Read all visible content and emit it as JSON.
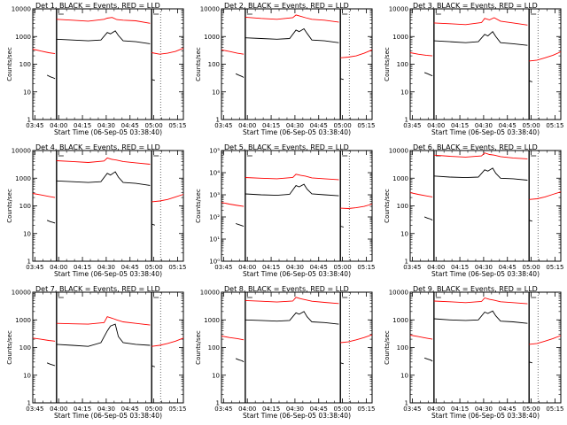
{
  "chart_data": [
    {
      "type": "line",
      "title": "Det 1, BLACK = Events, RED = LLD",
      "ylabel": "Counts/sec",
      "xlabel": "Start Time (06-Sep-05 03:38:40)",
      "xticks": [
        "03:45",
        "04:00",
        "04:15",
        "04:30",
        "04:45",
        "05:00",
        "05:15"
      ],
      "x_range_min": [
        5,
        100
      ],
      "yscale": "log",
      "ylim": [
        1,
        10000
      ],
      "ytick_labels": [
        "1",
        "10",
        "100",
        "1000",
        "10000"
      ],
      "gap_min": [
        20,
        80
      ],
      "series": [
        {
          "color": "#ff0000",
          "x": [
            5,
            10,
            15,
            19,
            20,
            30,
            40,
            50,
            52,
            55,
            58,
            62,
            70,
            79,
            80,
            85,
            90,
            95,
            100
          ],
          "y": [
            350,
            300,
            260,
            240,
            4200,
            3900,
            3600,
            4200,
            4600,
            4900,
            4100,
            3900,
            3700,
            3000,
            260,
            230,
            250,
            290,
            380
          ]
        },
        {
          "color": "#000000",
          "x": [
            14,
            16,
            18,
            19,
            20,
            30,
            40,
            48,
            52,
            54,
            57,
            59,
            62,
            70,
            79,
            80,
            82
          ],
          "y": [
            40,
            35,
            32,
            30,
            800,
            750,
            700,
            750,
            1400,
            1250,
            1600,
            1100,
            700,
            650,
            550,
            28,
            26
          ]
        }
      ]
    },
    {
      "type": "line",
      "title": "Det 2, BLACK = Events, RED = LLD",
      "ylabel": "Counts/sec",
      "xlabel": "Start Time (06-Sep-05 03:38:40)",
      "xticks": [
        "03:45",
        "04:00",
        "04:15",
        "04:30",
        "04:45",
        "05:00",
        "05:15"
      ],
      "x_range_min": [
        5,
        100
      ],
      "yscale": "log",
      "ylim": [
        1,
        10000
      ],
      "ytick_labels": [
        "1",
        "10",
        "100",
        "1000",
        "10000"
      ],
      "gap_min": [
        20,
        80
      ],
      "series": [
        {
          "color": "#ff0000",
          "x": [
            5,
            10,
            15,
            19,
            20,
            30,
            40,
            50,
            52,
            55,
            58,
            62,
            70,
            79,
            80,
            85,
            90,
            95,
            100
          ],
          "y": [
            330,
            290,
            250,
            230,
            5000,
            4500,
            4200,
            4800,
            6000,
            5400,
            4800,
            4200,
            3900,
            3300,
            170,
            180,
            200,
            250,
            330
          ]
        },
        {
          "color": "#000000",
          "x": [
            14,
            16,
            18,
            19,
            20,
            30,
            40,
            48,
            52,
            54,
            57,
            59,
            62,
            70,
            79,
            80,
            82
          ],
          "y": [
            45,
            40,
            36,
            33,
            900,
            850,
            800,
            850,
            1700,
            1500,
            1900,
            1300,
            750,
            700,
            600,
            30,
            28
          ]
        }
      ]
    },
    {
      "type": "line",
      "title": "Det 3, BLACK = Events, RED = LLD",
      "ylabel": "Counts/sec",
      "xlabel": "Start Time (06-Sep-05 03:38:40)",
      "xticks": [
        "03:45",
        "04:00",
        "04:15",
        "04:30",
        "04:45",
        "05:00",
        "05:15"
      ],
      "x_range_min": [
        5,
        100
      ],
      "yscale": "log",
      "ylim": [
        1,
        10000
      ],
      "ytick_labels": [
        "1",
        "10",
        "100",
        "1000",
        "10000"
      ],
      "gap_min": [
        20,
        80
      ],
      "series": [
        {
          "color": "#ff0000",
          "x": [
            5,
            10,
            15,
            19,
            20,
            30,
            40,
            50,
            52,
            55,
            58,
            62,
            70,
            79,
            80,
            85,
            90,
            95,
            100
          ],
          "y": [
            260,
            230,
            210,
            200,
            3100,
            2900,
            2700,
            3200,
            4500,
            4000,
            4800,
            3600,
            3100,
            2600,
            130,
            140,
            170,
            210,
            280
          ]
        },
        {
          "color": "#000000",
          "x": [
            14,
            16,
            18,
            19,
            20,
            30,
            40,
            48,
            52,
            54,
            57,
            59,
            62,
            70,
            79,
            80,
            82
          ],
          "y": [
            50,
            45,
            40,
            38,
            700,
            650,
            600,
            650,
            1200,
            1050,
            1500,
            1000,
            600,
            550,
            480,
            25,
            23
          ]
        }
      ]
    },
    {
      "type": "line",
      "title": "Det 4, BLACK = Events, RED = LLD",
      "ylabel": "Counts/sec",
      "xlabel": "Start Time (06-Sep-05 03:38:40)",
      "xticks": [
        "03:45",
        "04:00",
        "04:15",
        "04:30",
        "04:45",
        "05:00",
        "05:15"
      ],
      "x_range_min": [
        5,
        100
      ],
      "yscale": "log",
      "ylim": [
        1,
        10000
      ],
      "ytick_labels": [
        "1",
        "10",
        "100",
        "1000",
        "10000"
      ],
      "gap_min": [
        20,
        80
      ],
      "series": [
        {
          "color": "#ff0000",
          "x": [
            5,
            10,
            15,
            19,
            20,
            30,
            40,
            50,
            52,
            55,
            58,
            62,
            70,
            79,
            80,
            85,
            90,
            95,
            100
          ],
          "y": [
            280,
            250,
            220,
            200,
            4300,
            4000,
            3700,
            4200,
            5400,
            4800,
            4500,
            4000,
            3600,
            3200,
            140,
            150,
            170,
            210,
            260
          ]
        },
        {
          "color": "#000000",
          "x": [
            14,
            16,
            18,
            19,
            20,
            30,
            40,
            48,
            52,
            54,
            57,
            59,
            62,
            70,
            79,
            80,
            82
          ],
          "y": [
            30,
            27,
            25,
            24,
            800,
            750,
            700,
            750,
            1500,
            1300,
            1700,
            1100,
            700,
            650,
            550,
            22,
            20
          ]
        }
      ]
    },
    {
      "type": "line",
      "title": "Det 5, BLACK = Events, RED = LLD",
      "ylabel": "Counts/sec",
      "xlabel": "Start Time (06-Sep-05 03:38:40)",
      "xticks": [
        "03:45",
        "04:00",
        "04:15",
        "04:30",
        "04:45",
        "05:00",
        "05:15"
      ],
      "x_range_min": [
        5,
        100
      ],
      "yscale": "log",
      "ylim": [
        1,
        100000
      ],
      "ytick_labels": [
        "10⁰",
        "10¹",
        "10²",
        "10³",
        "10⁴",
        "10⁵"
      ],
      "gap_min": [
        20,
        80
      ],
      "series": [
        {
          "color": "#ff0000",
          "x": [
            5,
            10,
            15,
            19,
            20,
            30,
            40,
            50,
            52,
            55,
            58,
            62,
            70,
            79,
            80,
            85,
            90,
            95,
            100
          ],
          "y": [
            450,
            380,
            330,
            300,
            6000,
            5600,
            5300,
            6000,
            8500,
            7500,
            7000,
            5800,
            5300,
            4800,
            250,
            240,
            260,
            300,
            380
          ]
        },
        {
          "color": "#000000",
          "x": [
            14,
            16,
            18,
            19,
            20,
            30,
            40,
            48,
            52,
            54,
            57,
            59,
            62,
            70,
            79,
            80,
            82
          ],
          "y": [
            50,
            45,
            40,
            38,
            1100,
            1000,
            950,
            1050,
            2600,
            2300,
            3000,
            1800,
            1100,
            1000,
            900,
            38,
            35
          ]
        }
      ]
    },
    {
      "type": "line",
      "title": "Det 6, BLACK = Events, RED = LLD",
      "ylabel": "Counts/sec",
      "xlabel": "Start Time (06-Sep-05 03:38:40)",
      "xticks": [
        "03:45",
        "04:00",
        "04:15",
        "04:30",
        "04:45",
        "05:00",
        "05:15"
      ],
      "x_range_min": [
        5,
        100
      ],
      "yscale": "log",
      "ylim": [
        1,
        10000
      ],
      "ytick_labels": [
        "1",
        "10",
        "100",
        "1000",
        "10000"
      ],
      "gap_min": [
        20,
        80
      ],
      "series": [
        {
          "color": "#ff0000",
          "x": [
            5,
            10,
            15,
            19,
            20,
            30,
            40,
            50,
            52,
            55,
            58,
            62,
            70,
            79,
            80,
            85,
            90,
            95,
            100
          ],
          "y": [
            300,
            260,
            230,
            210,
            6800,
            6200,
            5800,
            6400,
            8200,
            7200,
            6800,
            6000,
            5400,
            5000,
            170,
            180,
            210,
            260,
            320
          ]
        },
        {
          "color": "#000000",
          "x": [
            14,
            16,
            18,
            19,
            20,
            30,
            40,
            48,
            52,
            54,
            57,
            59,
            62,
            70,
            79,
            80,
            82
          ],
          "y": [
            40,
            36,
            33,
            30,
            1200,
            1100,
            1050,
            1100,
            2000,
            1800,
            2300,
            1500,
            1000,
            950,
            850,
            30,
            28
          ]
        }
      ]
    },
    {
      "type": "line",
      "title": "Det 7, BLACK = Events, RED = LLD",
      "ylabel": "Counts/sec",
      "xlabel": "Start Time (06-Sep-05 03:38:40)",
      "xticks": [
        "03:45",
        "04:00",
        "04:15",
        "04:30",
        "04:45",
        "05:00",
        "05:15"
      ],
      "x_range_min": [
        5,
        100
      ],
      "yscale": "log",
      "ylim": [
        1,
        10000
      ],
      "ytick_labels": [
        "1",
        "10",
        "100",
        "1000",
        "10000"
      ],
      "gap_min": [
        20,
        80
      ],
      "series": [
        {
          "color": "#ff0000",
          "x": [
            5,
            10,
            15,
            19,
            20,
            30,
            40,
            50,
            52,
            55,
            58,
            62,
            70,
            79,
            80,
            85,
            90,
            95,
            100
          ],
          "y": [
            220,
            200,
            180,
            170,
            750,
            720,
            700,
            800,
            1300,
            1150,
            1000,
            850,
            750,
            650,
            110,
            120,
            140,
            170,
            220
          ]
        },
        {
          "color": "#000000",
          "x": [
            14,
            16,
            18,
            19,
            20,
            30,
            40,
            48,
            52,
            54,
            57,
            59,
            62,
            70,
            79,
            80,
            82
          ],
          "y": [
            28,
            25,
            23,
            22,
            130,
            120,
            110,
            150,
            400,
            600,
            700,
            250,
            150,
            130,
            120,
            22,
            20
          ]
        }
      ]
    },
    {
      "type": "line",
      "title": "Det 8, BLACK = Events, RED = LLD",
      "ylabel": "Counts/sec",
      "xlabel": "Start Time (06-Sep-05 03:38:40)",
      "xticks": [
        "03:45",
        "04:00",
        "04:15",
        "04:30",
        "04:45",
        "05:00",
        "05:15"
      ],
      "x_range_min": [
        5,
        100
      ],
      "yscale": "log",
      "ylim": [
        1,
        10000
      ],
      "ytick_labels": [
        "1",
        "10",
        "100",
        "1000",
        "10000"
      ],
      "gap_min": [
        20,
        80
      ],
      "series": [
        {
          "color": "#ff0000",
          "x": [
            5,
            10,
            15,
            19,
            20,
            30,
            40,
            50,
            52,
            55,
            58,
            62,
            70,
            79,
            80,
            85,
            90,
            95,
            100
          ],
          "y": [
            260,
            230,
            210,
            190,
            5000,
            4700,
            4400,
            4800,
            6500,
            5800,
            5300,
            4700,
            4300,
            3900,
            150,
            160,
            190,
            230,
            290
          ]
        },
        {
          "color": "#000000",
          "x": [
            14,
            16,
            18,
            19,
            20,
            30,
            40,
            48,
            52,
            54,
            57,
            59,
            62,
            70,
            79,
            80,
            82
          ],
          "y": [
            40,
            36,
            33,
            30,
            1000,
            950,
            900,
            950,
            1800,
            1600,
            2000,
            1300,
            850,
            800,
            700,
            28,
            26
          ]
        }
      ]
    },
    {
      "type": "line",
      "title": "Det 9, BLACK = Events, RED = LLD",
      "ylabel": "Counts/sec",
      "xlabel": "Start Time (06-Sep-05 03:38:40)",
      "xticks": [
        "03:45",
        "04:00",
        "04:15",
        "04:30",
        "04:45",
        "05:00",
        "05:15"
      ],
      "x_range_min": [
        5,
        100
      ],
      "yscale": "log",
      "ylim": [
        1,
        10000
      ],
      "ytick_labels": [
        "1",
        "10",
        "100",
        "1000",
        "10000"
      ],
      "gap_min": [
        20,
        80
      ],
      "series": [
        {
          "color": "#ff0000",
          "x": [
            5,
            10,
            15,
            19,
            20,
            30,
            40,
            50,
            52,
            55,
            58,
            62,
            70,
            79,
            80,
            85,
            90,
            95,
            100
          ],
          "y": [
            280,
            250,
            220,
            200,
            4800,
            4500,
            4200,
            4600,
            6200,
            5500,
            5100,
            4500,
            4200,
            3800,
            130,
            140,
            170,
            210,
            270
          ]
        },
        {
          "color": "#000000",
          "x": [
            14,
            16,
            18,
            19,
            20,
            30,
            40,
            48,
            52,
            54,
            57,
            59,
            62,
            70,
            79,
            80,
            82
          ],
          "y": [
            42,
            38,
            35,
            32,
            1100,
            1000,
            950,
            1000,
            1900,
            1700,
            2100,
            1400,
            900,
            850,
            750,
            30,
            28
          ]
        }
      ]
    }
  ]
}
